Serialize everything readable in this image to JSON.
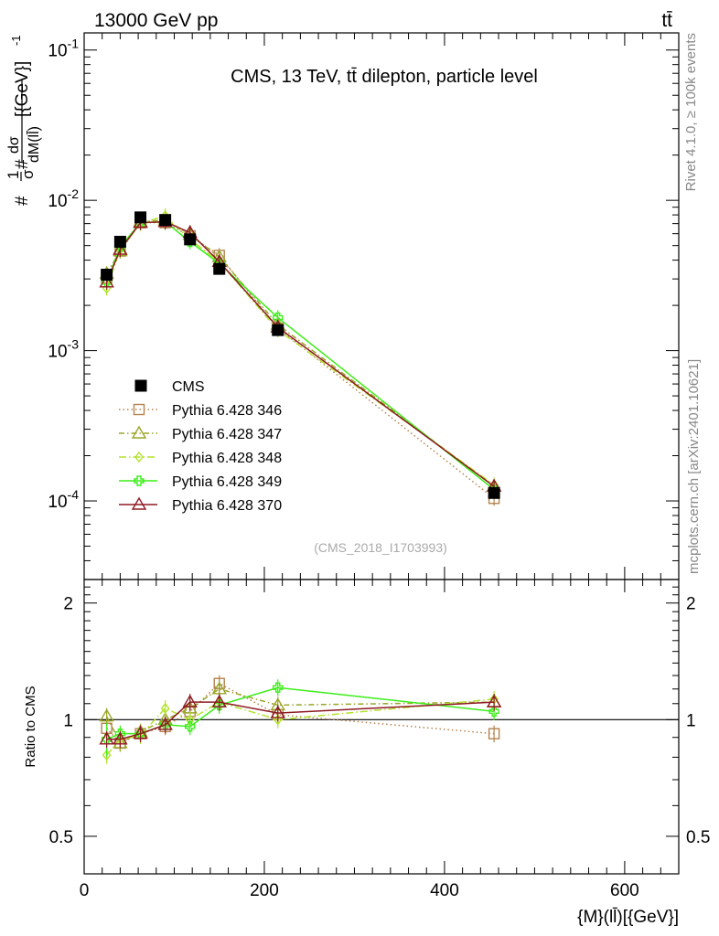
{
  "header": {
    "left": "13000 GeV pp",
    "right": "tt̄"
  },
  "side_labels": {
    "rivet": "Rivet 4.1.0, ≥ 100k events",
    "mcplots": "mcplots.cern.ch [arXiv:2401.10621]"
  },
  "chart_data": {
    "type": "line",
    "title": "CMS, 13 TeV, tt̄ dilepton, particle level",
    "watermark": "(CMS_2018_I1703993)",
    "xlabel": "{M}(ll̄)[{GeV}]",
    "ylabel": "#1/σ# dσ/dM(ll̄) [{GeV}]^-1",
    "ratio_ylabel": "Ratio to CMS",
    "xlim": [
      0,
      660
    ],
    "ylim": [
      3e-05,
      0.13
    ],
    "ratio_ylim": [
      0.4,
      2.3
    ],
    "yscale": "log",
    "x_ticks": [
      "0",
      "200",
      "400",
      "600"
    ],
    "y_ticks": [
      "10^-4",
      "10^-3",
      "10^-2",
      "10^-1"
    ],
    "ratio_ticks": [
      "0.5",
      "1",
      "2"
    ],
    "x": [
      25,
      40,
      62.5,
      90,
      117.5,
      150,
      215,
      455
    ],
    "data": {
      "name": "CMS",
      "values": [
        0.0032,
        0.0053,
        0.0077,
        0.0074,
        0.0055,
        0.0035,
        0.00137,
        0.000113
      ]
    },
    "series": [
      {
        "name": "Pythia 6.428 346",
        "color": "#b5834f",
        "marker": "square",
        "dash": "1.5,3",
        "values": [
          0.00305,
          0.0046,
          0.0071,
          0.0071,
          0.0058,
          0.0043,
          0.00141,
          0.000104
        ],
        "ratio": [
          0.95,
          0.87,
          0.92,
          0.96,
          1.05,
          1.24,
          1.03,
          0.92
        ]
      },
      {
        "name": "Pythia 6.428 347",
        "color": "#9aa52a",
        "marker": "triangle",
        "dash": "6,3,1.5,3",
        "values": [
          0.00325,
          0.0046,
          0.0072,
          0.0074,
          0.0059,
          0.0042,
          0.00149,
          0.000125
        ],
        "ratio": [
          1.02,
          0.87,
          0.93,
          1.0,
          1.07,
          1.2,
          1.09,
          1.11
        ]
      },
      {
        "name": "Pythia 6.428 348",
        "color": "#b3e22f",
        "marker": "diamond",
        "dash": "8,3,1.5,3",
        "values": [
          0.0026,
          0.0047,
          0.007,
          0.0079,
          0.0055,
          0.0039,
          0.00137,
          0.000128
        ],
        "ratio": [
          0.81,
          0.89,
          0.91,
          1.07,
          1.0,
          1.11,
          1.0,
          1.13
        ]
      },
      {
        "name": "Pythia 6.428 349",
        "color": "#3ded19",
        "marker": "cross",
        "dash": "",
        "values": [
          0.00285,
          0.0049,
          0.0071,
          0.0072,
          0.0053,
          0.0038,
          0.00166,
          0.000119
        ],
        "ratio": [
          0.89,
          0.92,
          0.92,
          0.97,
          0.96,
          1.09,
          1.21,
          1.05
        ]
      },
      {
        "name": "Pythia 6.428 370",
        "color": "#8e1a22",
        "marker": "triangle",
        "dash": "",
        "values": [
          0.00285,
          0.0047,
          0.0071,
          0.0072,
          0.0061,
          0.0039,
          0.00143,
          0.000125
        ],
        "ratio": [
          0.89,
          0.89,
          0.92,
          0.97,
          1.11,
          1.11,
          1.04,
          1.11
        ]
      }
    ]
  }
}
